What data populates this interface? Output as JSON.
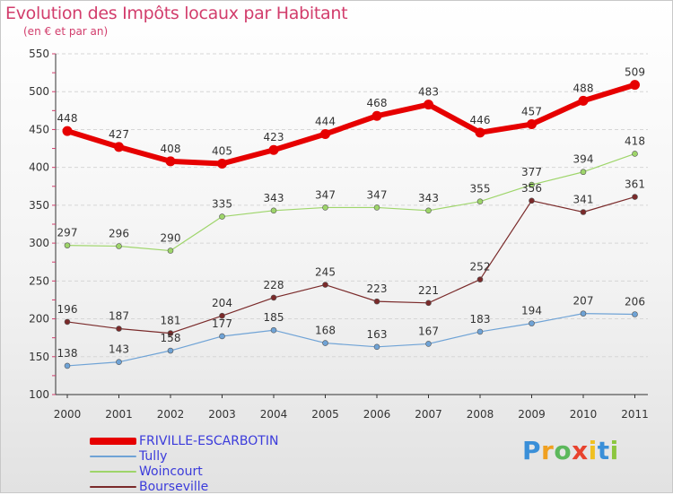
{
  "title": "Evolution des Impôts locaux par Habitant",
  "subtitle": "(en € et par an)",
  "logo": {
    "letters": [
      "P",
      "r",
      "o",
      "x",
      "i",
      "t",
      "i"
    ],
    "colors": [
      "#3a8fd8",
      "#f0a020",
      "#5cb85c",
      "#e8432e",
      "#f0c020",
      "#3a8fd8",
      "#8cc63f"
    ]
  },
  "chart_data": {
    "type": "line",
    "title": "Evolution des Impôts locaux par Habitant",
    "subtitle": "(en € et par an)",
    "xlabel": "",
    "ylabel": "",
    "ylim": [
      100,
      550
    ],
    "yticks": [
      100,
      150,
      200,
      250,
      300,
      350,
      400,
      450,
      500,
      550
    ],
    "x": [
      "2000",
      "2001",
      "2002",
      "2003",
      "2004",
      "2005",
      "2006",
      "2007",
      "2008",
      "2009",
      "2010",
      "2011"
    ],
    "series": [
      {
        "name": "FRIVILLE-ESCARBOTIN",
        "color": "#e60000",
        "values": [
          448,
          427,
          408,
          405,
          423,
          444,
          468,
          483,
          446,
          457,
          488,
          509
        ]
      },
      {
        "name": "Tully",
        "color": "#6fa3d6",
        "values": [
          138,
          143,
          158,
          177,
          185,
          168,
          163,
          167,
          183,
          194,
          207,
          206
        ]
      },
      {
        "name": "Woincourt",
        "color": "#9ed56a",
        "values": [
          297,
          296,
          290,
          335,
          343,
          347,
          347,
          343,
          355,
          377,
          394,
          418
        ]
      },
      {
        "name": "Bourseville",
        "color": "#7a2a2a",
        "values": [
          196,
          187,
          181,
          204,
          228,
          245,
          223,
          221,
          252,
          356,
          341,
          361
        ]
      }
    ]
  }
}
